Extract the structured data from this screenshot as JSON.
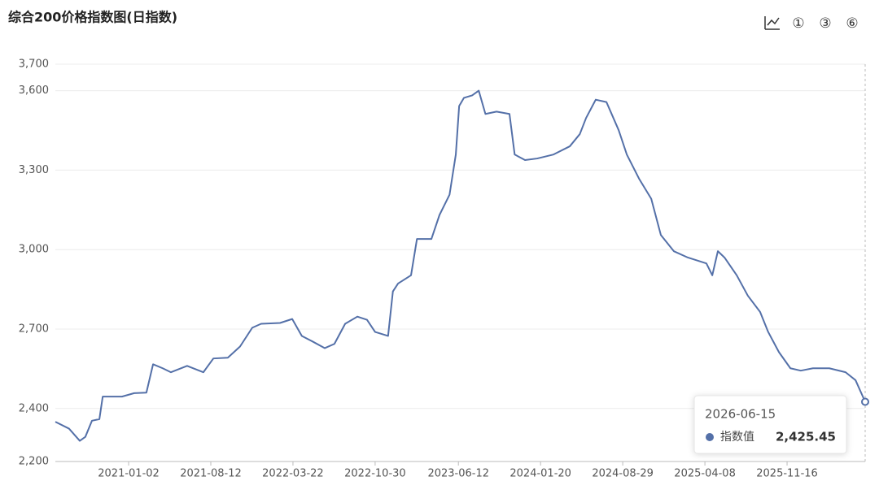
{
  "chart_data": {
    "type": "line",
    "title": "综合200价格指数图(日指数)",
    "toolbar": [
      "①",
      "③",
      "⑥"
    ],
    "x": [
      "2020-06-18",
      "2020-07-25",
      "2020-08-23",
      "2020-09-07",
      "2020-09-25",
      "2020-10-15",
      "2020-10-24",
      "2020-11-23",
      "2020-12-15",
      "2021-01-17",
      "2021-02-19",
      "2021-03-09",
      "2021-04-04",
      "2021-04-26",
      "2021-06-09",
      "2021-07-23",
      "2021-08-19",
      "2021-09-27",
      "2021-10-30",
      "2021-12-02",
      "2021-12-26",
      "2022-02-15",
      "2022-03-20",
      "2022-04-15",
      "2022-05-14",
      "2022-06-16",
      "2022-07-12",
      "2022-08-10",
      "2022-09-12",
      "2022-10-08",
      "2022-10-30",
      "2022-12-04",
      "2022-12-17",
      "2022-12-31",
      "2023-02-04",
      "2023-02-20",
      "2023-03-31",
      "2023-04-22",
      "2023-05-19",
      "2023-06-05",
      "2023-06-14",
      "2023-06-27",
      "2023-07-19",
      "2023-08-06",
      "2023-08-24",
      "2023-09-23",
      "2023-10-28",
      "2023-11-11",
      "2023-12-09",
      "2024-01-11",
      "2024-02-24",
      "2024-04-08",
      "2024-05-05",
      "2024-05-22",
      "2024-06-17",
      "2024-07-16",
      "2024-08-18",
      "2024-09-09",
      "2024-10-12",
      "2024-11-14",
      "2024-12-10",
      "2025-01-14",
      "2025-02-21",
      "2025-04-12",
      "2025-04-28",
      "2025-05-13",
      "2025-05-31",
      "2025-07-03",
      "2025-08-02",
      "2025-09-04",
      "2025-09-26",
      "2025-10-25",
      "2025-11-25",
      "2025-12-23",
      "2026-01-25",
      "2026-03-10",
      "2026-04-23",
      "2026-05-20",
      "2026-06-15"
    ],
    "series": [
      {
        "name": "指数值",
        "color": "#5470a8",
        "values": [
          2350,
          2324,
          2278,
          2293,
          2354,
          2360,
          2445,
          2445,
          2445,
          2458,
          2460,
          2567,
          2552,
          2537,
          2561,
          2537,
          2589,
          2592,
          2634,
          2705,
          2720,
          2723,
          2738,
          2674,
          2653,
          2628,
          2644,
          2720,
          2747,
          2735,
          2689,
          2674,
          2842,
          2872,
          2903,
          3040,
          3040,
          3131,
          3207,
          3359,
          3542,
          3573,
          3582,
          3600,
          3512,
          3521,
          3512,
          3359,
          3338,
          3344,
          3359,
          3390,
          3436,
          3497,
          3566,
          3557,
          3451,
          3359,
          3268,
          3192,
          3055,
          2994,
          2970,
          2948,
          2903,
          2994,
          2970,
          2903,
          2826,
          2765,
          2689,
          2613,
          2552,
          2543,
          2552,
          2552,
          2537,
          2507,
          2425.45
        ]
      }
    ],
    "tooltip_value_label": "2,425.45",
    "xlim": [
      "2020-06-18",
      "2026-06-15"
    ],
    "xticks": [
      "2021-01-02",
      "2021-08-12",
      "2022-03-22",
      "2022-10-30",
      "2023-06-12",
      "2024-01-20",
      "2024-08-29",
      "2025-04-08",
      "2025-11-16"
    ],
    "ylim": [
      2200,
      3700
    ],
    "yticks": [
      {
        "value": 2200,
        "label": "2,200"
      },
      {
        "value": 2400,
        "label": "2,400"
      },
      {
        "value": 2700,
        "label": "2,700"
      },
      {
        "value": 3000,
        "label": "3,000"
      },
      {
        "value": 3300,
        "label": "3,300"
      },
      {
        "value": 3600,
        "label": "3,600"
      },
      {
        "value": 3700,
        "label": "3,700"
      }
    ],
    "grid": true
  }
}
